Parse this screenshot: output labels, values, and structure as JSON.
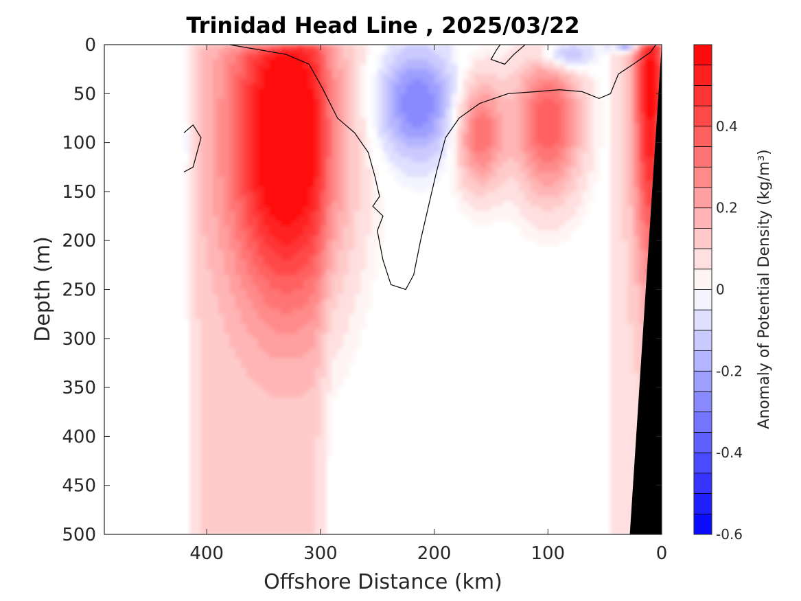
{
  "chart_data": {
    "type": "heatmap",
    "title": "Trinidad Head Line , 2025/03/22",
    "xlabel": "Offshore Distance (km)",
    "ylabel": "Depth (m)",
    "colorbar_label": "Anomaly of Potential Density (kg/m³)",
    "xlim": [
      490,
      0
    ],
    "ylim": [
      500,
      0
    ],
    "x_ticks": [
      400,
      300,
      200,
      100,
      0
    ],
    "y_ticks": [
      0,
      50,
      100,
      150,
      200,
      250,
      300,
      350,
      400,
      450,
      500
    ],
    "colorbar_range": [
      -0.6,
      0.6
    ],
    "colorbar_ticks": [
      {
        "value": 0.4,
        "label": "0.4"
      },
      {
        "value": 0.2,
        "label": "0.2"
      },
      {
        "value": 0,
        "label": "0"
      },
      {
        "value": -0.2,
        "label": "-0.2"
      },
      {
        "value": -0.4,
        "label": "-0.4"
      },
      {
        "value": -0.6,
        "label": "-0.6"
      }
    ],
    "colorbar_levels": 24,
    "data_extent_x": [
      420,
      0
    ],
    "grid": false,
    "features": [
      {
        "kind": "positive-anomaly",
        "peak_x_km": 330,
        "peak_depth_m": 95,
        "peak_value": 0.6,
        "extent_x_km": [
          420,
          290
        ],
        "extent_depth_m": [
          50,
          500
        ]
      },
      {
        "kind": "negative-anomaly",
        "peak_x_km": 215,
        "peak_depth_m": 60,
        "peak_value": -0.3,
        "extent_x_km": [
          270,
          180
        ],
        "extent_depth_m": [
          0,
          150
        ]
      },
      {
        "kind": "positive-anomaly",
        "peak_x_km": 160,
        "peak_depth_m": 90,
        "peak_value": 0.35,
        "extent_x_km": [
          185,
          130
        ],
        "extent_depth_m": [
          50,
          200
        ]
      },
      {
        "kind": "positive-anomaly",
        "peak_x_km": 100,
        "peak_depth_m": 80,
        "peak_value": 0.4,
        "extent_x_km": [
          135,
          60
        ],
        "extent_depth_m": [
          50,
          250
        ]
      },
      {
        "kind": "positive-anomaly",
        "peak_x_km": 10,
        "peak_depth_m": 45,
        "peak_value": 0.5,
        "extent_x_km": [
          40,
          5
        ],
        "extent_depth_m": [
          10,
          500
        ]
      },
      {
        "kind": "negative-anomaly",
        "peak_x_km": 85,
        "peak_depth_m": 10,
        "peak_value": -0.25,
        "extent_x_km": [
          110,
          50
        ],
        "extent_depth_m": [
          0,
          40
        ]
      },
      {
        "kind": "negative-anomaly",
        "peak_x_km": 30,
        "peak_depth_m": 3,
        "peak_value": -0.35,
        "extent_x_km": [
          45,
          15
        ],
        "extent_depth_m": [
          0,
          8
        ]
      },
      {
        "kind": "negative-anomaly",
        "peak_x_km": 345,
        "peak_depth_m": 3,
        "peak_value": -0.15,
        "extent_x_km": [
          380,
          300
        ],
        "extent_depth_m": [
          0,
          10
        ]
      },
      {
        "kind": "negative-anomaly",
        "peak_x_km": 420,
        "peak_depth_m": 100,
        "peak_value": -0.1,
        "extent_x_km": [
          425,
          410
        ],
        "extent_depth_m": [
          80,
          125
        ]
      }
    ],
    "zero_contour": [
      [
        420,
        90
      ],
      [
        412,
        82
      ],
      [
        405,
        95
      ],
      [
        412,
        125
      ],
      [
        420,
        130
      ]
    ],
    "zero_contour_main": [
      [
        380,
        0
      ],
      [
        355,
        5
      ],
      [
        330,
        10
      ],
      [
        310,
        20
      ],
      [
        298,
        45
      ],
      [
        285,
        75
      ],
      [
        270,
        90
      ],
      [
        258,
        110
      ],
      [
        252,
        135
      ],
      [
        248,
        155
      ],
      [
        254,
        165
      ],
      [
        245,
        175
      ],
      [
        250,
        190
      ],
      [
        245,
        220
      ],
      [
        238,
        245
      ],
      [
        225,
        250
      ],
      [
        218,
        235
      ],
      [
        212,
        200
      ],
      [
        204,
        160
      ],
      [
        198,
        130
      ],
      [
        190,
        95
      ],
      [
        178,
        75
      ],
      [
        160,
        60
      ],
      [
        135,
        50
      ],
      [
        110,
        48
      ],
      [
        90,
        46
      ],
      [
        70,
        48
      ],
      [
        55,
        55
      ],
      [
        45,
        50
      ],
      [
        38,
        30
      ],
      [
        25,
        20
      ],
      [
        10,
        8
      ],
      [
        5,
        0
      ]
    ],
    "zero_contour_b": [
      [
        120,
        0
      ],
      [
        130,
        10
      ],
      [
        138,
        20
      ],
      [
        150,
        15
      ],
      [
        145,
        5
      ],
      [
        142,
        0
      ]
    ],
    "bathymetry": [
      [
        0,
        0
      ],
      [
        28,
        500
      ],
      [
        0,
        500
      ]
    ]
  }
}
